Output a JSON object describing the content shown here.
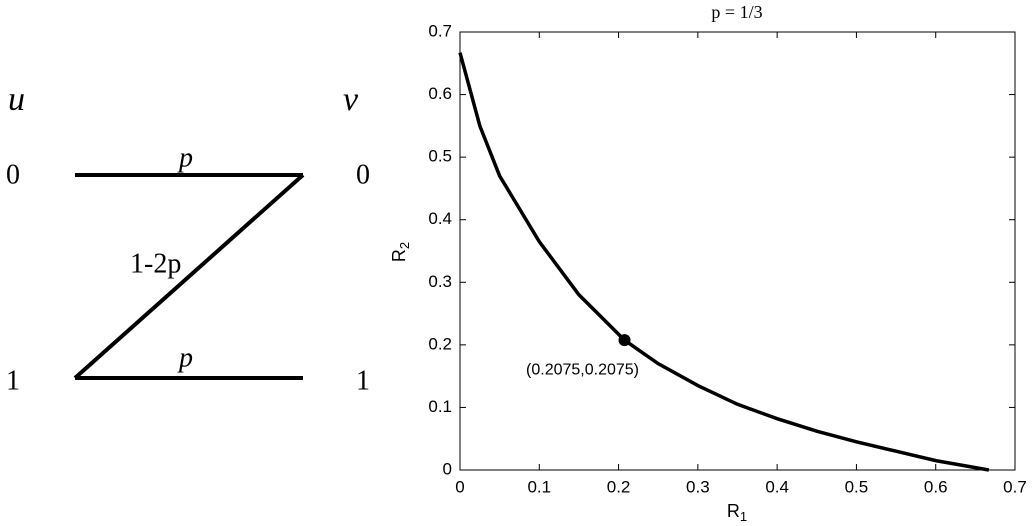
{
  "diagram": {
    "input_label": "u",
    "output_label": "v",
    "input_symbols": [
      "0",
      "1"
    ],
    "output_symbols": [
      "0",
      "1"
    ],
    "edge_labels": {
      "top": "p",
      "bottom": "p",
      "cross": "1-2p"
    }
  },
  "chart_data": {
    "type": "line",
    "title": "p = 1/3",
    "xlabel": {
      "text": "R",
      "subscript": "1"
    },
    "ylabel": {
      "text": "R",
      "subscript": "2"
    },
    "x": [
      0,
      0.025,
      0.05,
      0.1,
      0.15,
      0.2075,
      0.25,
      0.3,
      0.35,
      0.4,
      0.45,
      0.5,
      0.55,
      0.6,
      0.667
    ],
    "values": [
      0.667,
      0.55,
      0.47,
      0.365,
      0.28,
      0.2075,
      0.17,
      0.135,
      0.105,
      0.082,
      0.062,
      0.045,
      0.03,
      0.015,
      0
    ],
    "color": "#000000",
    "xlim": [
      0,
      0.7
    ],
    "ylim": [
      0,
      0.7
    ],
    "xticks": [
      0,
      0.1,
      0.2,
      0.3,
      0.4,
      0.5,
      0.6,
      0.7
    ],
    "yticks": [
      0,
      0.1,
      0.2,
      0.3,
      0.4,
      0.5,
      0.6,
      0.7
    ],
    "annotation": {
      "x": 0.2075,
      "y": 0.2075,
      "label": "(0.2075,0.2075)"
    }
  }
}
